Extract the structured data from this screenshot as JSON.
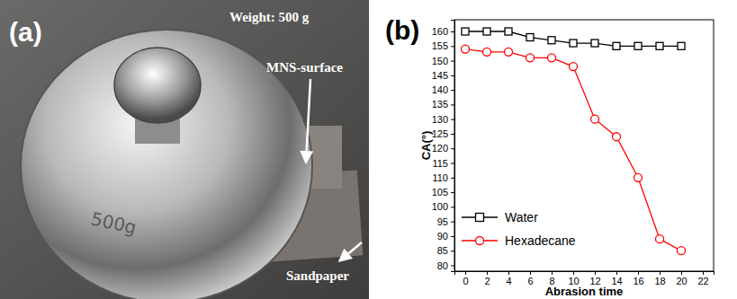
{
  "photo": {
    "label": "(a)",
    "weight_text": "Weight: 500 g",
    "surface_label": "MNS-surface",
    "sandpaper_label": "Sandpaper",
    "engraving": "500g"
  },
  "chart_data": {
    "type": "line",
    "title": "(b)",
    "x_label": "Abrasion time",
    "y_label": "CA(°)",
    "x": [
      0,
      2,
      4,
      6,
      8,
      10,
      12,
      14,
      16,
      18,
      20
    ],
    "series": [
      {
        "name": "Water",
        "color": "#000000",
        "marker": "square",
        "line_style": "solid",
        "values": [
          160,
          160,
          160,
          158,
          157,
          156,
          156,
          155,
          155,
          155,
          155
        ]
      },
      {
        "name": "Hexadecane",
        "color": "#ff0000",
        "marker": "circle",
        "line_style": "solid",
        "values": [
          154,
          153,
          153,
          151,
          151,
          148,
          130,
          124,
          110,
          89,
          85
        ]
      }
    ],
    "xlim": [
      -1,
      23
    ],
    "xticks": [
      0,
      2,
      4,
      6,
      8,
      10,
      12,
      14,
      16,
      18,
      20,
      22
    ],
    "ylim": [
      78,
      164
    ],
    "yticks": [
      80,
      85,
      90,
      95,
      100,
      105,
      110,
      115,
      120,
      125,
      130,
      135,
      140,
      145,
      150,
      155,
      160
    ],
    "grid": false,
    "legend": "lower left"
  }
}
